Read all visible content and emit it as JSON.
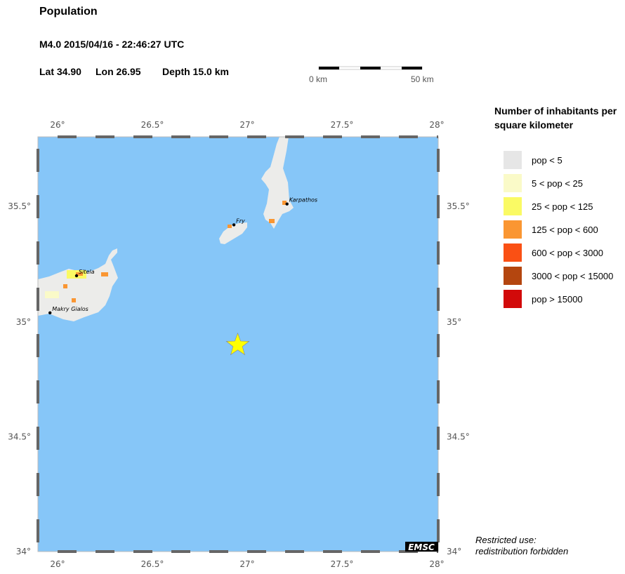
{
  "header": {
    "title": "Population",
    "event": "M4.0  2015/04/16 - 22:46:27 UTC",
    "lat_label": "Lat 34.90",
    "lon_label": "Lon  26.95",
    "depth_label": "Depth  15.0 km"
  },
  "scale_bar": {
    "start_label": "0 km",
    "end_label": "50 km"
  },
  "map": {
    "lon_ticks": [
      "26°",
      "26.5°",
      "27°",
      "27.5°",
      "28°"
    ],
    "lat_ticks": [
      "35.5°",
      "35°",
      "34.5°",
      "34°"
    ],
    "sea_color": "#86c6f8",
    "epicenter": {
      "lat": 34.9,
      "lon": 26.95,
      "icon": "star-icon",
      "color": "#ffff00"
    },
    "places": [
      {
        "name": "Sitela"
      },
      {
        "name": "Makry Gialos"
      },
      {
        "name": "Fry"
      },
      {
        "name": "Karpathos"
      }
    ],
    "logo": "EMSC"
  },
  "legend": {
    "title": "Number of inhabitants per square kilometer",
    "items": [
      {
        "label": "pop < 5",
        "color": "#e6e6e6"
      },
      {
        "label": "5 < pop < 25",
        "color": "#fafac8"
      },
      {
        "label": "25 < pop < 125",
        "color": "#fafa64"
      },
      {
        "label": "125 < pop < 600",
        "color": "#fa9632"
      },
      {
        "label": "600 < pop < 3000",
        "color": "#fa5014"
      },
      {
        "label": "3000 < pop < 15000",
        "color": "#b4460f"
      },
      {
        "label": "pop > 15000",
        "color": "#d20a0a"
      }
    ]
  },
  "footer": {
    "note_line1": "Restricted use:",
    "note_line2": "redistribution forbidden"
  }
}
